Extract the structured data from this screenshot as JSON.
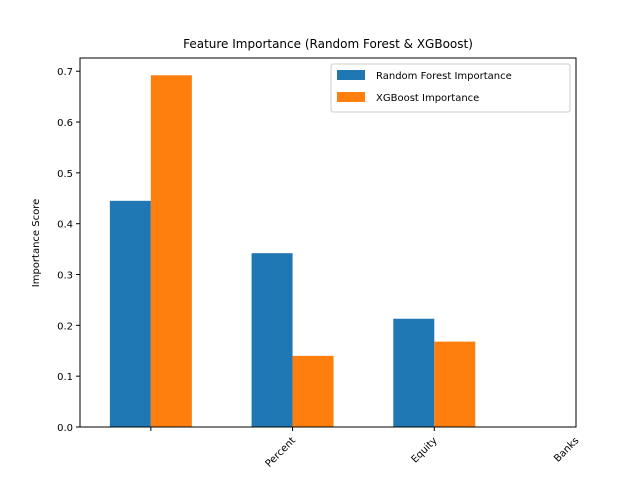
{
  "chart_data": {
    "type": "bar",
    "title": "Feature Importance (Random Forest & XGBoost)",
    "xlabel": "",
    "ylabel": "Importance Score",
    "categories": [
      "Percent",
      "Equity",
      "Banks"
    ],
    "series": [
      {
        "name": "Random Forest Importance",
        "color": "#1f77b4",
        "values": [
          0.445,
          0.342,
          0.213
        ]
      },
      {
        "name": "XGBoost Importance",
        "color": "#ff7f0e",
        "values": [
          0.692,
          0.14,
          0.168
        ]
      }
    ],
    "ylim": [
      0,
      0.726
    ],
    "yticks": [
      0.0,
      0.1,
      0.2,
      0.3,
      0.4,
      0.5,
      0.6,
      0.7
    ],
    "ytick_labels": [
      "0.0",
      "0.1",
      "0.2",
      "0.3",
      "0.4",
      "0.5",
      "0.6",
      "0.7"
    ],
    "grid": false,
    "legend_position": "top-right"
  }
}
